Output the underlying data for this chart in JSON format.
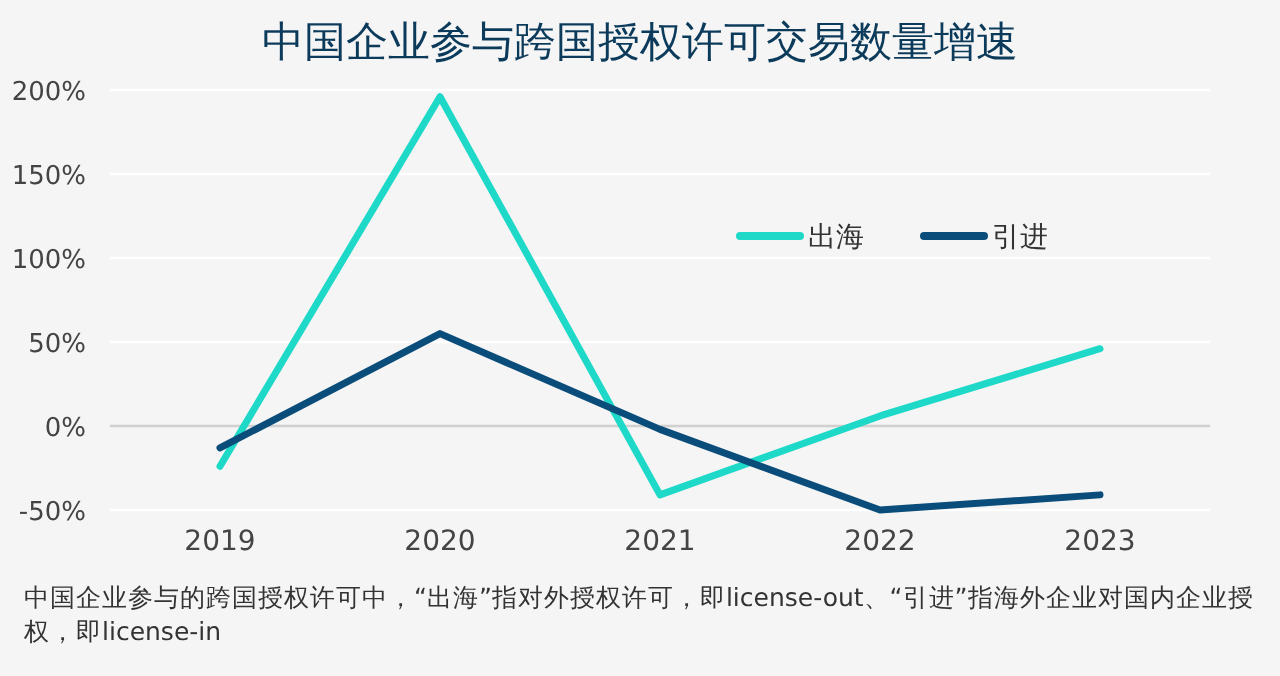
{
  "chart_data": {
    "type": "line",
    "title": "中国企业参与跨国授权许可交易数量增速",
    "categories": [
      "2019",
      "2020",
      "2021",
      "2022",
      "2023"
    ],
    "series": [
      {
        "name": "出海",
        "color": "#1ed8c8",
        "values": [
          -24,
          196,
          -41,
          6,
          46
        ]
      },
      {
        "name": "引进",
        "color": "#0b4d7a",
        "values": [
          -13,
          55,
          -2,
          -50,
          -41
        ]
      }
    ],
    "ylim": [
      -50,
      200
    ],
    "yticks": [
      {
        "value": -50,
        "label": "-50%"
      },
      {
        "value": 0,
        "label": "0%"
      },
      {
        "value": 50,
        "label": "50%"
      },
      {
        "value": 100,
        "label": "100%"
      },
      {
        "value": 150,
        "label": "150%"
      },
      {
        "value": 200,
        "label": "200%"
      }
    ],
    "grid": "y",
    "legend": "right",
    "marker": "none",
    "line_style": "solid",
    "annotations": [
      "中国企业参与的跨国授权许可中，“出海”指对外授权许可，即license-out、“引进”指海外企业对国内企业授权，即license-in"
    ]
  }
}
